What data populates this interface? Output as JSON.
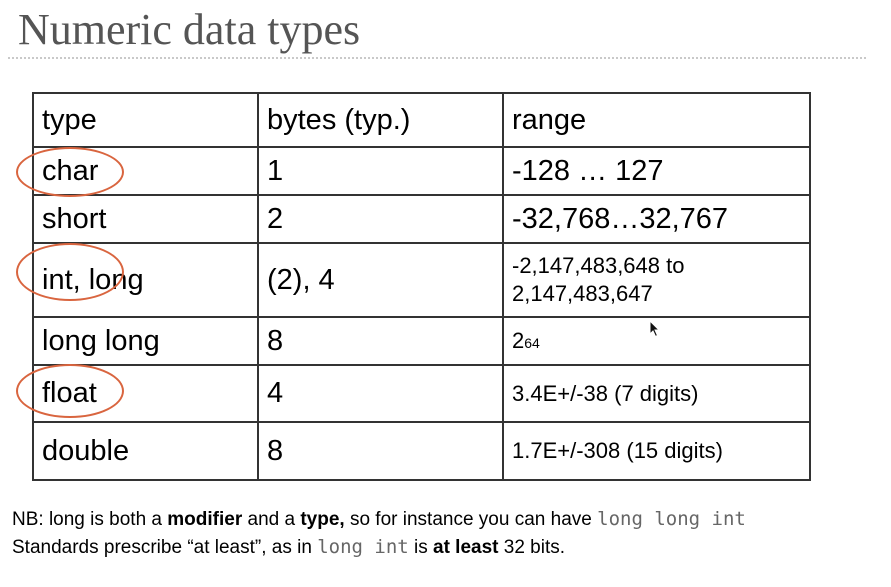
{
  "slide": {
    "title": "Numeric data types"
  },
  "table": {
    "headers": [
      "type",
      "bytes (typ.)",
      "range"
    ],
    "rows": [
      {
        "type": "char",
        "bytes": "1",
        "range": "-128 … 127"
      },
      {
        "type": "short",
        "bytes": "2",
        "range": "-32,768…32,767"
      },
      {
        "type": "int, long",
        "bytes": "(2), 4",
        "range": "-2,147,483,648 to 2,147,483,647"
      },
      {
        "type": "long long",
        "bytes": "8",
        "range_base": "2",
        "range_exp": "64"
      },
      {
        "type": "float",
        "bytes": "4",
        "range": "3.4E+/-38 (7 digits)"
      },
      {
        "type": "double",
        "bytes": "8",
        "range": "1.7E+/-308 (15 digits)"
      }
    ]
  },
  "notes": {
    "line1": {
      "prefix": "NB: long is both a ",
      "bold1": "modifier",
      "mid": " and a ",
      "bold2": "type,",
      "suffix": " so for instance you can have ",
      "code": "long long int"
    },
    "line2": {
      "prefix": "Standards prescribe “at least”, as in ",
      "code": "long int",
      "mid": " is ",
      "bold": "at least",
      "suffix": "  32 bits."
    }
  },
  "colors": {
    "highlight_circle": "#d9653f",
    "title_text": "#555555"
  }
}
